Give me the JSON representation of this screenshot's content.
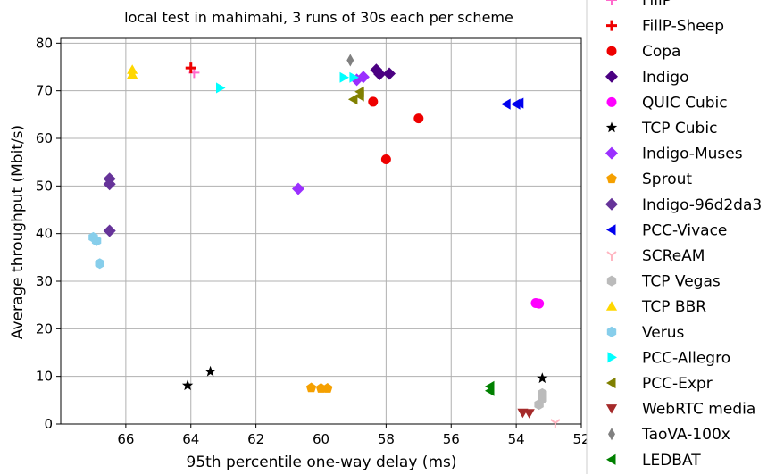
{
  "chart_data": {
    "type": "scatter",
    "title": "local test in mahimahi, 3 runs of 30s each per scheme",
    "xlabel": "95th percentile one-way delay (ms)",
    "ylabel": "Average throughput (Mbit/s)",
    "xlim": [
      68,
      52
    ],
    "ylim": [
      0,
      81
    ],
    "x_reversed": true,
    "xticks": [
      66,
      64,
      62,
      60,
      58,
      56,
      54,
      52
    ],
    "xtick_labels": [
      "66",
      "64",
      "62",
      "60",
      "58",
      "56",
      "54",
      "52"
    ],
    "yticks": [
      0,
      10,
      20,
      30,
      40,
      50,
      60,
      70,
      80
    ],
    "ytick_labels": [
      "0",
      "10",
      "20",
      "30",
      "40",
      "50",
      "60",
      "70",
      "80"
    ],
    "grid": true,
    "legend_position": "right-outside",
    "series": [
      {
        "name": "FillP",
        "marker": "plus-thin",
        "color": "#ff69cc",
        "points": [
          [
            63.9,
            73.8
          ]
        ]
      },
      {
        "name": "FillP-Sheep",
        "marker": "plus-bold",
        "color": "#ee0000",
        "points": [
          [
            64.0,
            74.8
          ]
        ]
      },
      {
        "name": "Copa",
        "marker": "circle",
        "color": "#ee0000",
        "points": [
          [
            58.4,
            67.7
          ],
          [
            57.0,
            64.2
          ],
          [
            58.0,
            55.6
          ]
        ]
      },
      {
        "name": "Indigo",
        "marker": "diamond",
        "color": "#4b0082",
        "points": [
          [
            58.3,
            74.4
          ],
          [
            58.2,
            73.5
          ],
          [
            57.9,
            73.6
          ]
        ]
      },
      {
        "name": "QUIC Cubic",
        "marker": "circle",
        "color": "#ff00ff",
        "points": [
          [
            53.4,
            25.4
          ],
          [
            53.3,
            25.3
          ]
        ]
      },
      {
        "name": "TCP Cubic",
        "marker": "star",
        "color": "#000000",
        "points": [
          [
            64.1,
            8.1
          ],
          [
            63.4,
            11.0
          ],
          [
            53.2,
            9.6
          ]
        ]
      },
      {
        "name": "Indigo-Muses",
        "marker": "diamond",
        "color": "#9b30ff",
        "points": [
          [
            60.7,
            49.4
          ],
          [
            58.9,
            72.3
          ],
          [
            58.7,
            72.9
          ]
        ]
      },
      {
        "name": "Sprout",
        "marker": "pentagon",
        "color": "#f5a000",
        "points": [
          [
            60.3,
            7.6
          ],
          [
            60.0,
            7.5
          ],
          [
            59.8,
            7.5
          ]
        ]
      },
      {
        "name": "Indigo-96d2da3",
        "marker": "diamond",
        "color": "#663399",
        "points": [
          [
            66.5,
            51.5
          ],
          [
            66.5,
            50.4
          ],
          [
            66.5,
            40.6
          ]
        ]
      },
      {
        "name": "PCC-Vivace",
        "marker": "triangle-left",
        "color": "#0000ee",
        "points": [
          [
            54.3,
            67.2
          ],
          [
            54.0,
            67.2
          ],
          [
            53.9,
            67.4
          ]
        ]
      },
      {
        "name": "SCReAM",
        "marker": "tri-down",
        "color": "#ffb6c1",
        "points": [
          [
            52.8,
            0.2
          ]
        ]
      },
      {
        "name": "TCP Vegas",
        "marker": "hexagon",
        "color": "#bbbbbb",
        "points": [
          [
            53.2,
            6.4
          ],
          [
            53.2,
            5.3
          ],
          [
            53.3,
            4.1
          ]
        ]
      },
      {
        "name": "TCP BBR",
        "marker": "triangle-up",
        "color": "#ffd700",
        "points": [
          [
            65.8,
            74.4
          ],
          [
            65.8,
            73.4
          ]
        ]
      },
      {
        "name": "Verus",
        "marker": "hexagon",
        "color": "#87ceeb",
        "points": [
          [
            67.0,
            39.2
          ],
          [
            66.9,
            38.5
          ],
          [
            66.8,
            33.7
          ]
        ]
      },
      {
        "name": "PCC-Allegro",
        "marker": "triangle-right",
        "color": "#00ffff",
        "points": [
          [
            63.1,
            70.6
          ],
          [
            59.3,
            72.8
          ],
          [
            59.0,
            72.8
          ]
        ]
      },
      {
        "name": "PCC-Expr",
        "marker": "triangle-left",
        "color": "#808000",
        "points": [
          [
            59.0,
            68.2
          ],
          [
            58.8,
            68.9
          ],
          [
            58.8,
            69.8
          ]
        ]
      },
      {
        "name": "WebRTC media",
        "marker": "triangle-down",
        "color": "#a52a2a",
        "points": [
          [
            53.8,
            2.4
          ],
          [
            53.6,
            2.3
          ]
        ]
      },
      {
        "name": "TaoVA-100x",
        "marker": "thin-diamond",
        "color": "#808080",
        "points": [
          [
            59.1,
            76.4
          ]
        ]
      },
      {
        "name": "LEDBAT",
        "marker": "triangle-left",
        "color": "#008000",
        "points": [
          [
            54.8,
            7.9
          ],
          [
            54.8,
            7.0
          ]
        ]
      }
    ]
  }
}
